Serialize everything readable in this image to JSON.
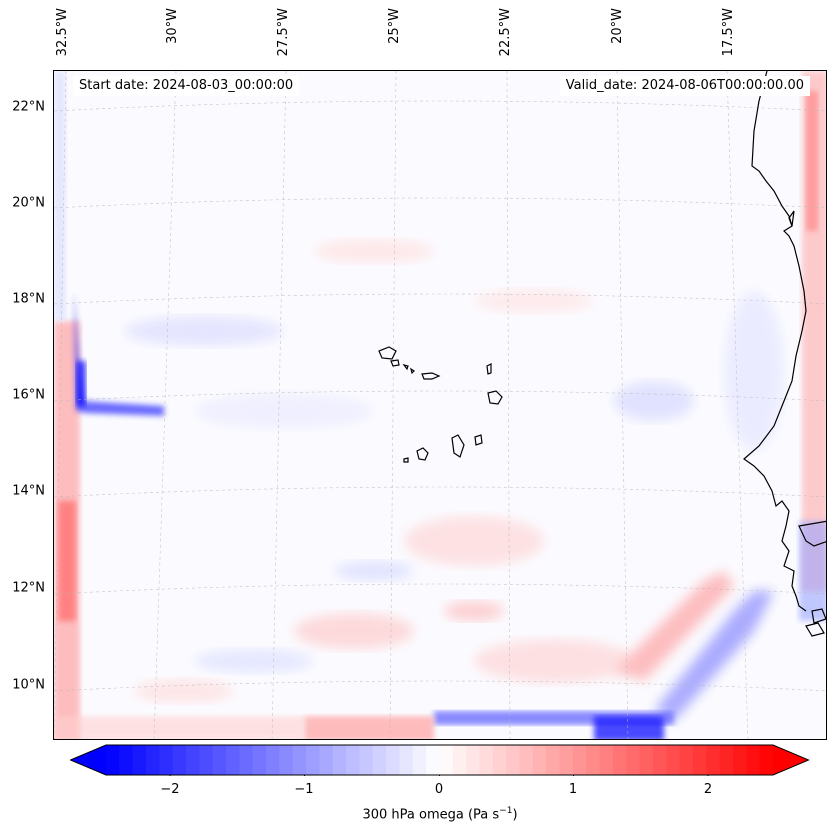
{
  "map": {
    "start_date": "Start date: 2024-08-03_00:00:00",
    "valid_date": "Valid_date: 2024-08-06T00:00:00.00",
    "lat_labels": [
      "22°N",
      "20°N",
      "18°N",
      "16°N",
      "14°N",
      "12°N",
      "10°N"
    ],
    "lon_labels": [
      "32.5°W",
      "30°W",
      "27.5°W",
      "25°W",
      "22.5°W",
      "20°W",
      "17.5°W"
    ],
    "colorbar": {
      "ticks": [
        "−2",
        "−1",
        "0",
        "1",
        "2"
      ],
      "label_prefix": "300 hPa omega (Pa s",
      "label_exp": "−1",
      "label_suffix": ")",
      "min": -2.7,
      "max": 2.7
    },
    "colors": {
      "negative": "#0000ff",
      "positive": "#ff0000",
      "neutral": "#ffffff"
    }
  }
}
